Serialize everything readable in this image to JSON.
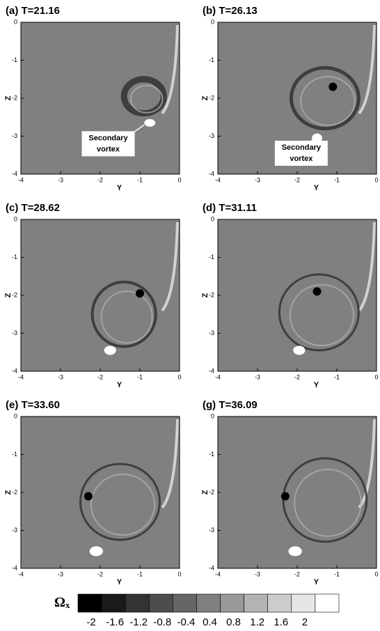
{
  "chart_data": [
    {
      "type": "contour",
      "title": "(a) T=21.16",
      "xlabel": "Y",
      "ylabel": "Z",
      "xlim": [
        -4,
        0
      ],
      "ylim": [
        -4,
        0
      ],
      "xticks": [
        -4,
        -3,
        -2,
        -1,
        0
      ],
      "yticks": [
        -4,
        -3,
        -2,
        -1,
        0
      ],
      "annotation": [
        "Secondary",
        "vortex"
      ]
    },
    {
      "type": "contour",
      "title": "(b) T=26.13",
      "xlabel": "Y",
      "ylabel": "Z",
      "xlim": [
        -4,
        0
      ],
      "ylim": [
        -4,
        0
      ],
      "xticks": [
        -4,
        -3,
        -2,
        -1,
        0
      ],
      "yticks": [
        -4,
        -3,
        -2,
        -1,
        0
      ],
      "annotation": [
        "Secondary",
        "vortex"
      ]
    },
    {
      "type": "contour",
      "title": "(c) T=28.62",
      "xlabel": "Y",
      "ylabel": "Z",
      "xlim": [
        -4,
        0
      ],
      "ylim": [
        -4,
        0
      ],
      "xticks": [
        -4,
        -3,
        -2,
        -1,
        0
      ],
      "yticks": [
        -4,
        -3,
        -2,
        -1,
        0
      ]
    },
    {
      "type": "contour",
      "title": "(d) T=31.11",
      "xlabel": "Y",
      "ylabel": "Z",
      "xlim": [
        -4,
        0
      ],
      "ylim": [
        -4,
        0
      ],
      "xticks": [
        -4,
        -3,
        -2,
        -1,
        0
      ],
      "yticks": [
        -4,
        -3,
        -2,
        -1,
        0
      ]
    },
    {
      "type": "contour",
      "title": "(e) T=33.60",
      "xlabel": "Y",
      "ylabel": "Z",
      "xlim": [
        -4,
        0
      ],
      "ylim": [
        -4,
        0
      ],
      "xticks": [
        -4,
        -3,
        -2,
        -1,
        0
      ],
      "yticks": [
        -4,
        -3,
        -2,
        -1,
        0
      ]
    },
    {
      "type": "contour",
      "title": "(g) T=36.09",
      "xlabel": "Y",
      "ylabel": "Z",
      "xlim": [
        -4,
        0
      ],
      "ylim": [
        -4,
        0
      ],
      "xticks": [
        -4,
        -3,
        -2,
        -1,
        0
      ],
      "yticks": [
        -4,
        -3,
        -2,
        -1,
        0
      ]
    }
  ],
  "colorbar": {
    "label": "Ω",
    "subscript": "x",
    "ticks": [
      -2,
      -1.6,
      -1.2,
      -0.8,
      -0.4,
      0.4,
      0.8,
      1.2,
      1.6,
      2
    ],
    "colors": [
      "#000000",
      "#1a1a1a",
      "#333333",
      "#4d4d4d",
      "#666666",
      "#808080",
      "#999999",
      "#b3b3b3",
      "#cccccc",
      "#e6e6e6",
      "#ffffff"
    ]
  }
}
